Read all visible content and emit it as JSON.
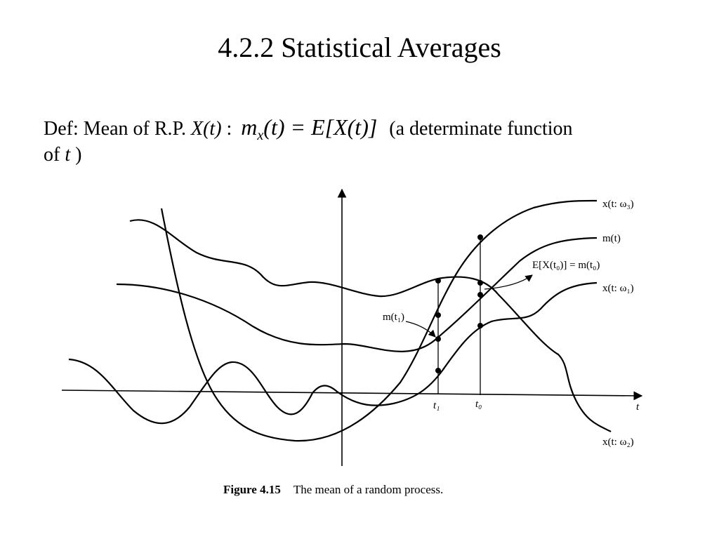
{
  "slide": {
    "title": "4.2.2 Statistical Averages",
    "definition": {
      "prefix": "Def: Mean of R.P. ",
      "process": "X(t)",
      "colon": " :",
      "eq_m": "m",
      "eq_sub": "x",
      "eq_rest": "(t) = ",
      "eq_E": "E",
      "eq_bracket": "[X(t)]",
      "suffix": " (a determinate function",
      "line2_prefix": "of ",
      "line2_t": "t",
      "line2_suffix": " )"
    }
  },
  "figure": {
    "labels": {
      "x_w3": "x(t: ω₃)",
      "m_t": "m(t)",
      "e_x_t0": "E[X(t₀)] = m(t₀)",
      "x_w1": "x(t: ω₁)",
      "m_t1": "m(t₁)",
      "x_w2": "x(t: ω₂)",
      "axis_t": "t",
      "tick_t1": "t₁",
      "tick_t0": "t₀"
    },
    "caption_label": "Figure 4.15",
    "caption_text": "The mean of a random process."
  }
}
